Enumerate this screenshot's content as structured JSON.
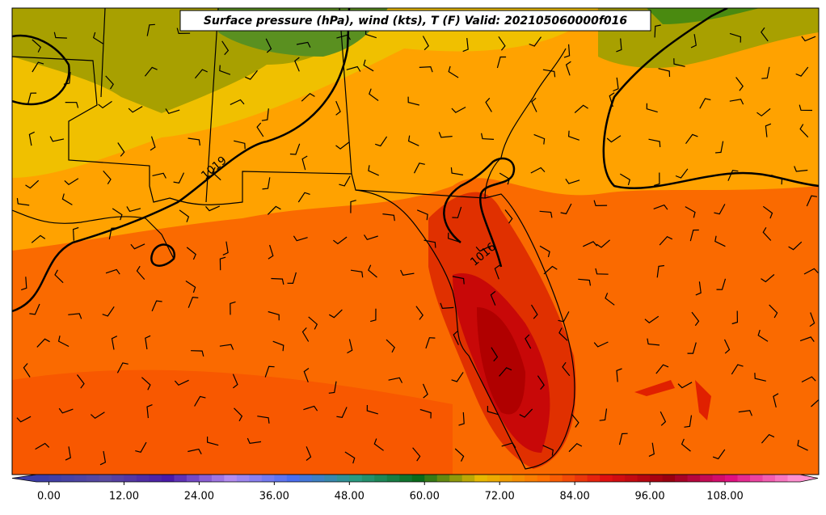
{
  "title": "Surface pressure (hPa), wind (kts), T (F) Valid: 202105060000f016",
  "contour_labels": [
    "1019",
    "1016"
  ],
  "colorbar": {
    "clim": [
      -2,
      120
    ],
    "ticks": [
      {
        "value": 0,
        "label": "0.00"
      },
      {
        "value": 12,
        "label": "12.00"
      },
      {
        "value": 24,
        "label": "24.00"
      },
      {
        "value": 36,
        "label": "36.00"
      },
      {
        "value": 48,
        "label": "48.00"
      },
      {
        "value": 60,
        "label": "60.00"
      },
      {
        "value": 72,
        "label": "72.00"
      },
      {
        "value": 84,
        "label": "84.00"
      },
      {
        "value": 96,
        "label": "96.00"
      },
      {
        "value": 108,
        "label": "108.00"
      }
    ],
    "colormap": [
      "#3c3ca8",
      "#5a4aa0",
      "#4a1aa8",
      "#b48cf0",
      "#4a6ef0",
      "#2a9a80",
      "#0a6a1a",
      "#e8b800",
      "#ff7000",
      "#e01010",
      "#9a0010",
      "#e01080",
      "#ff90d0"
    ]
  }
}
